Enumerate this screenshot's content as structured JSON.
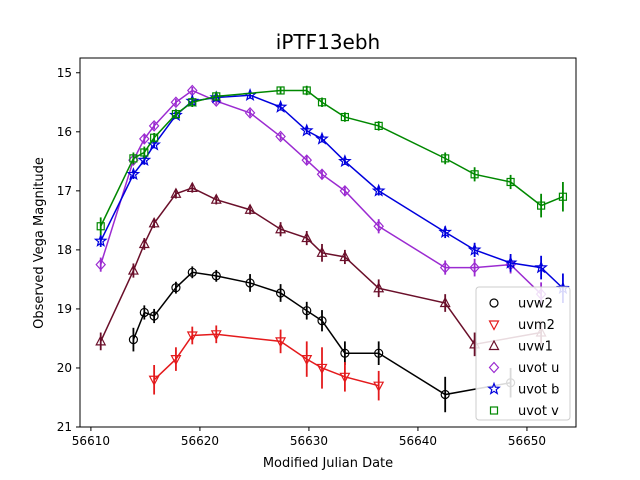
{
  "chart_data": {
    "type": "scatter",
    "title": "iPTF13ebh",
    "xlabel": "Modified Julian Date",
    "ylabel": "Observed Vega Magnitude",
    "xlim": [
      56609,
      56654.5
    ],
    "ylim": [
      21,
      14.75
    ],
    "y_inverted": true,
    "x_ticks": [
      "56610",
      "56620",
      "56630",
      "56640",
      "56650"
    ],
    "x_tick_values": [
      56610,
      56620,
      56630,
      56640,
      56650
    ],
    "y_ticks": [
      "15",
      "16",
      "17",
      "18",
      "19",
      "20",
      "21"
    ],
    "y_tick_values": [
      15,
      16,
      17,
      18,
      19,
      20,
      21
    ],
    "grid": false,
    "legend_position": "lower-right",
    "series": [
      {
        "name": "uvw2",
        "color": "#000000",
        "marker": "circle",
        "x": [
          56613.9,
          56614.9,
          56615.8,
          56617.8,
          56619.3,
          56621.5,
          56624.6,
          56627.4,
          56629.8,
          56631.2,
          56633.3,
          56636.4,
          56642.5,
          56648.5
        ],
        "y": [
          19.52,
          19.06,
          19.12,
          18.64,
          18.38,
          18.44,
          18.56,
          18.73,
          19.03,
          19.2,
          19.75,
          19.75,
          20.45,
          20.25
        ],
        "err": [
          0.2,
          0.12,
          0.12,
          0.1,
          0.1,
          0.1,
          0.15,
          0.15,
          0.15,
          0.18,
          0.2,
          0.2,
          0.3,
          0.25
        ]
      },
      {
        "name": "uvm2",
        "color": "#e41a1c",
        "marker": "triangle-down",
        "x": [
          56615.8,
          56617.8,
          56619.3,
          56621.5,
          56627.4,
          56629.8,
          56631.2,
          56633.3,
          56636.4
        ],
        "y": [
          20.2,
          19.85,
          19.45,
          19.43,
          19.55,
          19.85,
          20.0,
          20.15,
          20.3
        ],
        "err": [
          0.25,
          0.2,
          0.15,
          0.15,
          0.2,
          0.3,
          0.35,
          0.25,
          0.25
        ]
      },
      {
        "name": "uvw1",
        "color": "#6a0f2a",
        "marker": "triangle-up",
        "x": [
          56610.9,
          56613.9,
          56614.9,
          56615.8,
          56617.8,
          56619.3,
          56621.5,
          56624.6,
          56627.4,
          56629.8,
          56631.2,
          56633.3,
          56636.4,
          56642.5,
          56645.2,
          56651.3
        ],
        "y": [
          19.55,
          18.35,
          17.9,
          17.55,
          17.05,
          16.95,
          17.15,
          17.32,
          17.65,
          17.8,
          18.05,
          18.12,
          18.65,
          18.9,
          19.6,
          19.4
        ],
        "err": [
          0.15,
          0.12,
          0.1,
          0.08,
          0.08,
          0.08,
          0.08,
          0.08,
          0.12,
          0.12,
          0.15,
          0.12,
          0.15,
          0.15,
          0.2,
          0.2
        ]
      },
      {
        "name": "uvot u",
        "color": "#9b2bd1",
        "marker": "diamond",
        "x": [
          56610.9,
          56613.9,
          56614.9,
          56615.8,
          56617.8,
          56619.3,
          56621.5,
          56624.6,
          56627.4,
          56629.8,
          56631.2,
          56633.3,
          56636.4,
          56642.5,
          56645.2,
          56648.5,
          56651.3
        ],
        "y": [
          18.25,
          16.48,
          16.12,
          15.9,
          15.5,
          15.3,
          15.48,
          15.68,
          16.08,
          16.48,
          16.72,
          17.0,
          17.6,
          18.3,
          18.3,
          18.25,
          18.75
        ],
        "err": [
          0.12,
          0.08,
          0.08,
          0.06,
          0.06,
          0.06,
          0.06,
          0.06,
          0.06,
          0.08,
          0.08,
          0.08,
          0.12,
          0.12,
          0.15,
          0.15,
          0.2
        ]
      },
      {
        "name": "uvot b",
        "color": "#0000dd",
        "marker": "star",
        "x": [
          56610.9,
          56613.9,
          56614.9,
          56615.8,
          56617.8,
          56619.3,
          56621.5,
          56624.6,
          56627.4,
          56629.8,
          56631.2,
          56633.3,
          56636.4,
          56642.5,
          56645.2,
          56648.5,
          56651.3,
          56653.3
        ],
        "y": [
          17.85,
          16.72,
          16.48,
          16.22,
          15.72,
          15.48,
          15.42,
          15.38,
          15.58,
          15.98,
          16.12,
          16.5,
          17.0,
          17.7,
          18.0,
          18.22,
          18.3,
          18.65
        ],
        "err": [
          0.1,
          0.08,
          0.08,
          0.06,
          0.06,
          0.06,
          0.06,
          0.06,
          0.06,
          0.06,
          0.06,
          0.06,
          0.08,
          0.1,
          0.12,
          0.15,
          0.2,
          0.25
        ]
      },
      {
        "name": "uvot v",
        "color": "#008800",
        "marker": "square",
        "x": [
          56610.9,
          56613.9,
          56614.9,
          56615.8,
          56617.8,
          56619.3,
          56621.5,
          56627.4,
          56629.8,
          56631.2,
          56633.3,
          56636.4,
          56642.5,
          56645.2,
          56648.5,
          56651.3,
          56653.3
        ],
        "y": [
          17.6,
          16.45,
          16.35,
          16.1,
          15.7,
          15.5,
          15.4,
          15.3,
          15.3,
          15.5,
          15.75,
          15.9,
          16.45,
          16.72,
          16.85,
          17.25,
          17.1
        ],
        "err": [
          0.15,
          0.1,
          0.1,
          0.08,
          0.08,
          0.08,
          0.08,
          0.06,
          0.08,
          0.08,
          0.08,
          0.08,
          0.1,
          0.12,
          0.12,
          0.2,
          0.25
        ]
      }
    ]
  }
}
